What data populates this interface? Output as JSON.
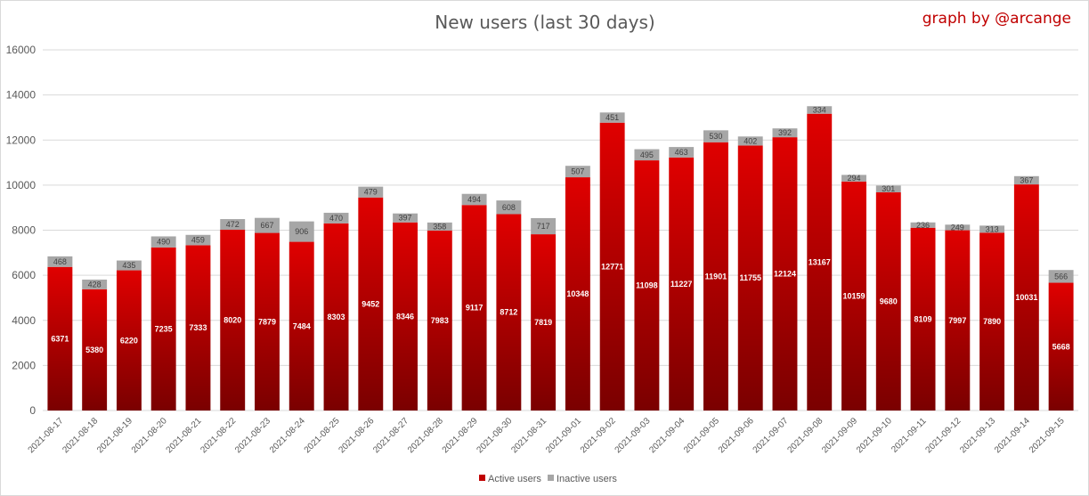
{
  "chart_data": {
    "type": "bar",
    "stacked": true,
    "title": "New users (last 30 days)",
    "watermark": "graph by @arcange",
    "xlabel": "",
    "ylabel": "",
    "ylim": [
      0,
      16000
    ],
    "yticks": [
      0,
      2000,
      4000,
      6000,
      8000,
      10000,
      12000,
      14000,
      16000
    ],
    "grid": true,
    "legend_position": "bottom",
    "categories": [
      "2021-08-17",
      "2021-08-18",
      "2021-08-19",
      "2021-08-20",
      "2021-08-21",
      "2021-08-22",
      "2021-08-23",
      "2021-08-24",
      "2021-08-25",
      "2021-08-26",
      "2021-08-27",
      "2021-08-28",
      "2021-08-29",
      "2021-08-30",
      "2021-08-31",
      "2021-09-01",
      "2021-09-02",
      "2021-09-03",
      "2021-09-04",
      "2021-09-05",
      "2021-09-06",
      "2021-09-07",
      "2021-09-08",
      "2021-09-09",
      "2021-09-10",
      "2021-09-11",
      "2021-09-12",
      "2021-09-13",
      "2021-09-14",
      "2021-09-15"
    ],
    "series": [
      {
        "name": "Active users",
        "color": "#c00000",
        "values": [
          6371,
          5380,
          6220,
          7235,
          7333,
          8020,
          7879,
          7484,
          8303,
          9452,
          8346,
          7983,
          9117,
          8712,
          7819,
          10348,
          12771,
          11098,
          11227,
          11901,
          11755,
          12124,
          13167,
          10159,
          9680,
          8109,
          7997,
          7890,
          10031,
          5668
        ]
      },
      {
        "name": "Inactive users",
        "color": "#a6a6a6",
        "values": [
          468,
          428,
          435,
          490,
          459,
          472,
          667,
          906,
          470,
          479,
          397,
          358,
          494,
          608,
          717,
          507,
          451,
          495,
          463,
          530,
          402,
          392,
          334,
          294,
          301,
          236,
          249,
          313,
          367,
          566
        ]
      }
    ]
  },
  "colors": {
    "active_top": "#e00000",
    "active_bottom": "#7a0000",
    "inactive": "#a6a6a6",
    "brand": "#c00000",
    "grid": "#d9d9d9"
  }
}
